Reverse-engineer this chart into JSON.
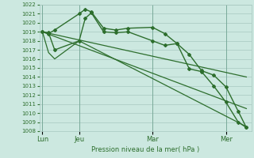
{
  "bg_color": "#cce8e0",
  "grid_color": "#a8c8c0",
  "line_color": "#2d6e2d",
  "xlabel": "Pression niveau de la mer( hPa )",
  "ylim": [
    1008,
    1022
  ],
  "yticks": [
    1008,
    1009,
    1010,
    1011,
    1012,
    1013,
    1014,
    1015,
    1016,
    1017,
    1018,
    1019,
    1020,
    1021,
    1022
  ],
  "xtick_labels": [
    "Lun",
    "Jeu",
    "Mar",
    "Mer"
  ],
  "xtick_pos": [
    0,
    36,
    108,
    180
  ],
  "xlim": [
    -3,
    205
  ],
  "series": [
    {
      "x": [
        0,
        6,
        12,
        36,
        42,
        48,
        60,
        72,
        84,
        108,
        120,
        132,
        144,
        156,
        168,
        180,
        192,
        200
      ],
      "y": [
        1019.0,
        1018.8,
        1019.2,
        1021.0,
        1021.5,
        1021.2,
        1019.4,
        1019.2,
        1019.4,
        1019.5,
        1018.8,
        1017.7,
        1014.9,
        1014.6,
        1013.0,
        1011.2,
        1009.0,
        1008.4
      ],
      "marker": "D",
      "markersize": 2.0,
      "linewidth": 1.0
    },
    {
      "x": [
        0,
        6,
        12,
        36,
        42,
        48,
        60,
        72,
        84,
        108,
        120,
        132,
        144,
        156,
        168,
        180,
        192,
        200
      ],
      "y": [
        1019.0,
        1018.9,
        1017.0,
        1018.0,
        1020.5,
        1021.1,
        1019.0,
        1018.9,
        1019.0,
        1018.0,
        1017.5,
        1017.7,
        1016.5,
        1014.7,
        1014.2,
        1012.9,
        1010.2,
        1008.4
      ],
      "marker": "D",
      "markersize": 2.0,
      "linewidth": 1.0
    },
    {
      "x": [
        0,
        200
      ],
      "y": [
        1019.0,
        1014.0
      ],
      "marker": null,
      "linewidth": 0.9
    },
    {
      "x": [
        0,
        200
      ],
      "y": [
        1019.0,
        1010.5
      ],
      "marker": null,
      "linewidth": 0.9
    },
    {
      "x": [
        0,
        6,
        12,
        36,
        200
      ],
      "y": [
        1019.0,
        1016.7,
        1016.0,
        1018.0,
        1008.5
      ],
      "marker": null,
      "linewidth": 0.9
    }
  ]
}
